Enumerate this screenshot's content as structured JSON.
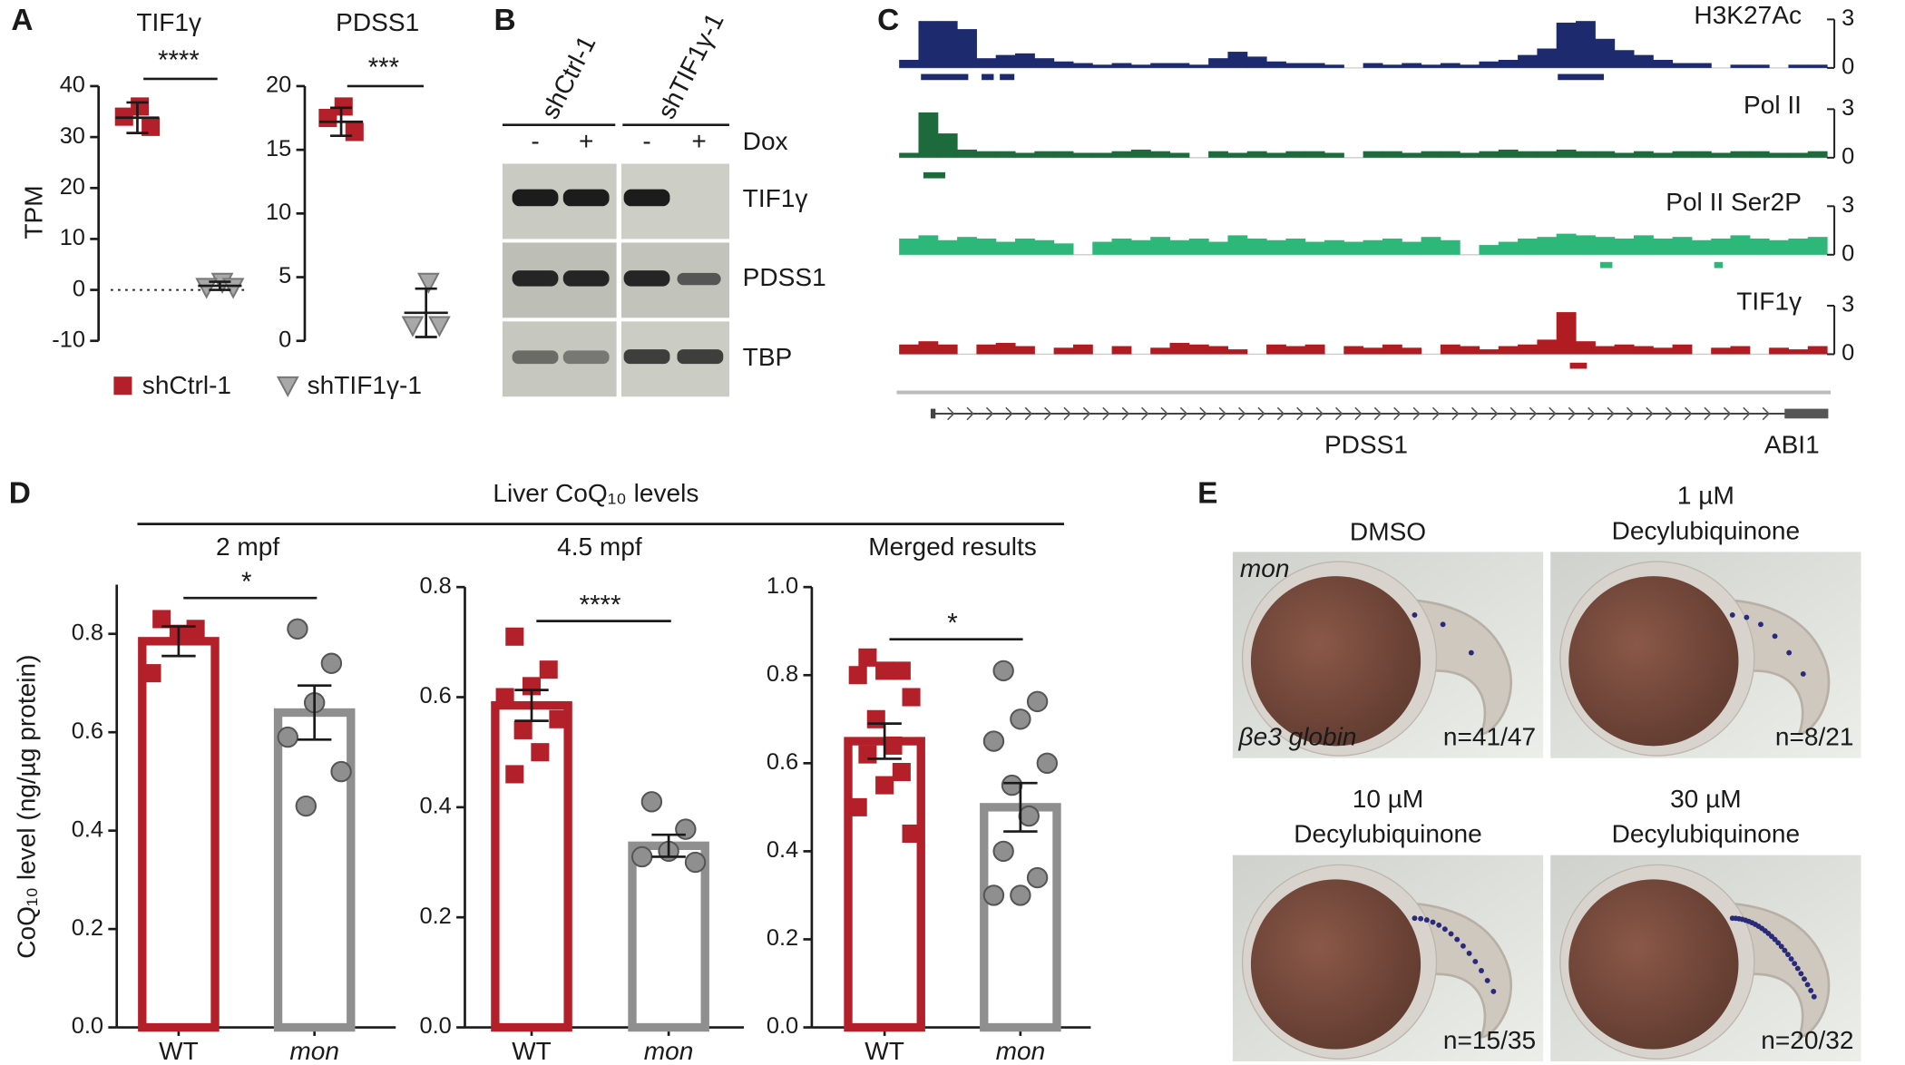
{
  "panel_labels": [
    "A",
    "B",
    "C",
    "D",
    "E"
  ],
  "chart_data": [
    {
      "type": "dot",
      "title": "TIF1γ",
      "ylabel": "TPM",
      "ylim": [
        -10,
        40
      ],
      "yticks": [
        -10,
        0,
        10,
        20,
        30,
        40
      ],
      "zero_line": true,
      "significance": "****",
      "legend": true,
      "series": [
        {
          "name": "shCtrl-1",
          "color": "#b3202a",
          "marker": "square",
          "values": [
            36,
            34,
            32
          ],
          "mean": 33.8,
          "error": 3
        },
        {
          "name": "shTIF1γ-1",
          "color": "#a8a8a8",
          "marker": "triangle",
          "values": [
            1.5,
            0.5,
            0.5
          ],
          "mean": 0.8,
          "error": 0.8
        }
      ]
    },
    {
      "type": "dot",
      "title": "PDSS1",
      "ylim": [
        0,
        20
      ],
      "yticks": [
        0,
        5,
        10,
        15,
        20
      ],
      "significance": "***",
      "series": [
        {
          "color": "#b3202a",
          "marker": "square",
          "values": [
            18.4,
            17.5,
            16.4
          ],
          "mean": 17.2,
          "error": 1.1
        },
        {
          "color": "#a8a8a8",
          "marker": "triangle",
          "values": [
            4.6,
            1.2,
            1.2
          ],
          "mean": 2.2,
          "error": 1.9
        }
      ]
    },
    {
      "type": "track",
      "ylim": [
        0,
        3
      ],
      "yticks": [
        0,
        3
      ],
      "genes": [
        "PDSS1",
        "ABI1"
      ],
      "tracks": [
        {
          "name": "H3K27Ac",
          "color": "#1e2a6e",
          "values": [
            0.5,
            2.9,
            2.9,
            2.4,
            0.6,
            0.8,
            0.9,
            0.6,
            0.4,
            0.3,
            0.2,
            0.3,
            0.2,
            0.3,
            0.3,
            0.2,
            0.6,
            1.0,
            0.7,
            0.4,
            0.3,
            0.3,
            0.2,
            null,
            0.3,
            0.2,
            0.3,
            0.2,
            0.3,
            0.2,
            0.4,
            0.5,
            0.8,
            1.2,
            2.8,
            2.9,
            1.8,
            1.1,
            0.8,
            0.5,
            0.3,
            0.3,
            null,
            0.2,
            0.2,
            null,
            0.2,
            0.2
          ]
        },
        {
          "name": "Pol II",
          "color": "#1d6a3c",
          "values": [
            0.3,
            2.8,
            1.5,
            0.5,
            0.4,
            0.4,
            0.3,
            0.4,
            0.4,
            0.3,
            0.3,
            0.4,
            0.5,
            0.4,
            0.3,
            null,
            0.4,
            0.3,
            0.4,
            0.3,
            0.4,
            0.4,
            0.3,
            null,
            0.4,
            0.4,
            0.3,
            0.4,
            0.4,
            0.3,
            0.4,
            0.5,
            0.4,
            0.4,
            0.5,
            0.4,
            0.4,
            0.3,
            0.4,
            0.3,
            0.4,
            0.4,
            0.3,
            0.4,
            0.4,
            0.3,
            0.3,
            0.4
          ]
        },
        {
          "name": "Pol II Ser2P",
          "color": "#2db87a",
          "values": [
            1.0,
            1.2,
            0.9,
            1.1,
            1.0,
            0.8,
            1.0,
            0.9,
            0.7,
            null,
            0.8,
            1.0,
            0.9,
            1.1,
            0.9,
            1.0,
            0.8,
            1.2,
            1.0,
            0.9,
            1.0,
            0.8,
            0.9,
            0.8,
            0.9,
            1.0,
            0.8,
            1.1,
            0.9,
            null,
            0.6,
            0.8,
            1.0,
            1.1,
            1.3,
            1.2,
            1.1,
            1.0,
            1.2,
            1.0,
            1.1,
            0.9,
            1.0,
            1.2,
            1.0,
            0.9,
            1.0,
            1.1
          ]
        },
        {
          "name": "TIF1γ",
          "color": "#b01c22",
          "values": [
            0.6,
            0.8,
            0.6,
            null,
            0.6,
            0.7,
            0.5,
            null,
            0.4,
            0.6,
            null,
            0.5,
            null,
            0.4,
            0.7,
            0.6,
            0.5,
            0.3,
            null,
            0.6,
            0.5,
            0.6,
            null,
            0.5,
            0.4,
            0.6,
            0.4,
            null,
            0.6,
            0.5,
            0.3,
            0.5,
            0.6,
            0.9,
            2.6,
            0.8,
            0.5,
            0.6,
            0.5,
            0.4,
            0.6,
            null,
            0.4,
            0.5,
            null,
            0.4,
            0.3,
            0.5
          ]
        }
      ]
    },
    {
      "type": "bar",
      "group_title": "Liver CoQ₁₀ levels",
      "subtitle": "2 mpf",
      "ylabel": "CoQ₁₀ level (ng/µg protein)",
      "significance": "*",
      "categories": [
        "WT",
        "mon"
      ],
      "category_styles": [
        "normal",
        "italic"
      ],
      "colors": [
        "#b3202a",
        "#8f8f8f"
      ],
      "markers": [
        "square",
        "circle"
      ],
      "values": [
        0.785,
        0.64
      ],
      "errors": [
        0.03,
        0.055
      ],
      "points": [
        [
          0.83,
          0.81,
          0.8,
          0.72
        ],
        [
          0.81,
          0.74,
          0.66,
          0.59,
          0.52,
          0.45
        ]
      ],
      "ylim": [
        0,
        0.9
      ],
      "yticks": [
        {
          "value": 0,
          "label": "0.0"
        },
        0.2,
        0.4,
        0.6,
        0.8
      ]
    },
    {
      "type": "bar",
      "subtitle": "4.5 mpf",
      "significance": "****",
      "categories": [
        "WT",
        "mon"
      ],
      "category_styles": [
        "normal",
        "italic"
      ],
      "colors": [
        "#b3202a",
        "#8f8f8f"
      ],
      "markers": [
        "square",
        "circle"
      ],
      "values": [
        0.585,
        0.33
      ],
      "errors": [
        0.028,
        0.02
      ],
      "points": [
        [
          0.71,
          0.65,
          0.62,
          0.6,
          0.56,
          0.54,
          0.5,
          0.46
        ],
        [
          0.41,
          0.36,
          0.32,
          0.31,
          0.3
        ]
      ],
      "ylim": [
        0,
        0.8
      ],
      "yticks": [
        {
          "value": 0,
          "label": "0.0"
        },
        0.2,
        0.4,
        0.6,
        0.8
      ]
    },
    {
      "type": "bar",
      "subtitle": "Merged results",
      "significance": "*",
      "categories": [
        "WT",
        "mon"
      ],
      "category_styles": [
        "normal",
        "italic"
      ],
      "colors": [
        "#b3202a",
        "#8f8f8f"
      ],
      "markers": [
        "square",
        "circle"
      ],
      "values": [
        0.65,
        0.5
      ],
      "errors": [
        0.04,
        0.055
      ],
      "points": [
        [
          0.84,
          0.81,
          0.81,
          0.8,
          0.75,
          0.7,
          0.64,
          0.62,
          0.58,
          0.55,
          0.5,
          0.44
        ],
        [
          0.81,
          0.74,
          0.7,
          0.65,
          0.6,
          0.55,
          0.48,
          0.4,
          0.34,
          0.3,
          0.3
        ]
      ],
      "ylim": [
        0,
        1
      ],
      "yticks": [
        {
          "value": 0,
          "label": "0.0"
        },
        0.2,
        0.4,
        0.6,
        0.8,
        {
          "value": 1,
          "label": "1.0"
        }
      ]
    }
  ],
  "blot": {
    "groups": [
      "shCtrl-1",
      "shTIF1γ-1"
    ],
    "treatment": "Dox",
    "lanes": [
      "-",
      "+",
      "-",
      "+"
    ],
    "rows": [
      "TIF1γ",
      "PDSS1",
      "TBP"
    ]
  },
  "embryo": {
    "strain": "mon",
    "probe": "βe3 globin",
    "panels": [
      {
        "title": [
          "DMSO"
        ],
        "count": "n=41/47"
      },
      {
        "title": [
          "1 µM",
          "Decylubiquinone"
        ],
        "count": "n=8/21"
      },
      {
        "title": [
          "10 µM",
          "Decylubiquinone"
        ],
        "count": "n=15/35"
      },
      {
        "title": [
          "30 µM",
          "Decylubiquinone"
        ],
        "count": "n=20/32"
      }
    ]
  }
}
